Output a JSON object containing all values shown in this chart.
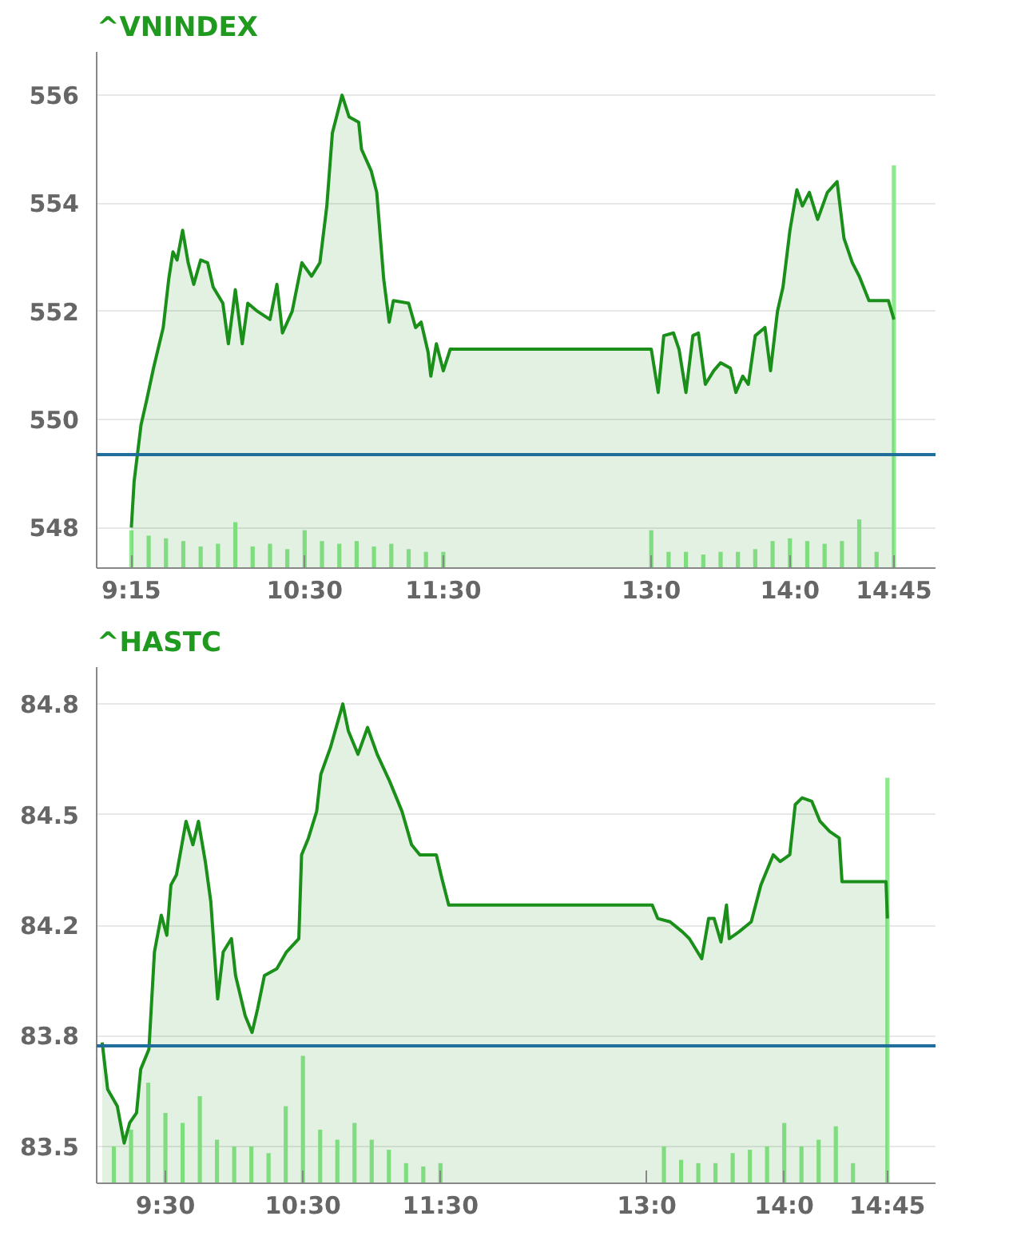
{
  "chart_data": [
    {
      "type": "area",
      "title": "^VNINDEX",
      "xlim": [
        9.0,
        15.05
      ],
      "ylim": [
        547.25,
        556.8
      ],
      "xticks": [
        {
          "value": 9.25,
          "label": "9:15"
        },
        {
          "value": 10.5,
          "label": "10:30"
        },
        {
          "value": 11.5,
          "label": "11:30"
        },
        {
          "value": 13.0,
          "label": "13:0"
        },
        {
          "value": 14.0,
          "label": "14:0"
        },
        {
          "value": 14.75,
          "label": "14:45"
        }
      ],
      "yticks": [
        548,
        550,
        552,
        554,
        556
      ],
      "grid": "y",
      "ref_lines": [
        {
          "axis": "y",
          "value": 549.35,
          "color": "#1f6e9c"
        }
      ],
      "series": [
        {
          "color": "#1a8f1a",
          "x": [
            9.25,
            9.27,
            9.32,
            9.36,
            9.41,
            9.48,
            9.52,
            9.55,
            9.58,
            9.62,
            9.66,
            9.7,
            9.75,
            9.8,
            9.84,
            9.91,
            9.95,
            10.0,
            10.05,
            10.09,
            10.16,
            10.25,
            10.3,
            10.34,
            10.41,
            10.48,
            10.55,
            10.61,
            10.66,
            10.7,
            10.77,
            10.82,
            10.89,
            10.91,
            10.98,
            11.02,
            11.07,
            11.11,
            11.14,
            11.25,
            11.3,
            11.34,
            11.39,
            11.41,
            11.45,
            11.5,
            11.55,
            13.0,
            13.05,
            13.09,
            13.16,
            13.2,
            13.25,
            13.3,
            13.34,
            13.39,
            13.45,
            13.5,
            13.57,
            13.61,
            13.66,
            13.7,
            13.75,
            13.82,
            13.86,
            13.91,
            13.95,
            14.0,
            14.05,
            14.09,
            14.14,
            14.2,
            14.27,
            14.34,
            14.39,
            14.45,
            14.5,
            14.57,
            14.71,
            14.75
          ],
          "values": [
            548.0,
            548.85,
            549.9,
            550.35,
            550.95,
            551.7,
            552.6,
            553.1,
            552.95,
            553.5,
            552.9,
            552.5,
            552.95,
            552.9,
            552.45,
            552.15,
            551.4,
            552.4,
            551.4,
            552.15,
            552.0,
            551.85,
            552.5,
            551.6,
            552.0,
            552.9,
            552.65,
            552.9,
            553.95,
            555.3,
            556.0,
            555.6,
            555.5,
            555.0,
            554.6,
            554.2,
            552.6,
            551.8,
            552.2,
            552.15,
            551.7,
            551.8,
            551.25,
            550.8,
            551.4,
            550.9,
            551.3,
            551.3,
            550.5,
            551.55,
            551.6,
            551.3,
            550.5,
            551.55,
            551.6,
            550.65,
            550.9,
            551.05,
            550.95,
            550.5,
            550.8,
            550.65,
            551.55,
            551.7,
            550.9,
            552.0,
            552.45,
            553.5,
            554.25,
            553.95,
            554.2,
            553.7,
            554.2,
            554.4,
            553.35,
            552.9,
            552.65,
            552.2,
            552.2,
            551.85
          ]
        },
        {
          "type": "bar",
          "color": "#8ee88e",
          "x": [
            9.25,
            9.375,
            9.5,
            9.625,
            9.75,
            9.875,
            10.0,
            10.125,
            10.25,
            10.375,
            10.5,
            10.625,
            10.75,
            10.875,
            11.0,
            11.125,
            11.25,
            11.375,
            11.5,
            13.0,
            13.125,
            13.25,
            13.375,
            13.5,
            13.625,
            13.75,
            13.875,
            14.0,
            14.125,
            14.25,
            14.375,
            14.5,
            14.625,
            14.75
          ],
          "base": [
            547.25,
            547.25,
            547.25,
            547.25,
            547.25,
            547.25,
            547.25,
            547.25,
            547.25,
            547.25,
            547.25,
            547.25,
            547.25,
            547.25,
            547.25,
            547.25,
            547.25,
            547.25,
            547.25,
            547.25,
            547.25,
            547.25,
            547.25,
            547.25,
            547.25,
            547.25,
            547.25,
            547.25,
            547.25,
            547.25,
            547.25,
            547.25,
            547.25,
            547.25
          ],
          "values": [
            0.7,
            0.6,
            0.55,
            0.5,
            0.4,
            0.45,
            0.85,
            0.4,
            0.45,
            0.35,
            0.7,
            0.5,
            0.45,
            0.5,
            0.4,
            0.45,
            0.35,
            0.3,
            0.3,
            0.7,
            0.3,
            0.3,
            0.25,
            0.3,
            0.3,
            0.35,
            0.5,
            0.55,
            0.5,
            0.45,
            0.5,
            0.9,
            0.3,
            7.45
          ]
        }
      ]
    },
    {
      "type": "area",
      "title": "^HASTC",
      "xlim": [
        9.0,
        15.1
      ],
      "ylim": [
        83.39,
        84.93
      ],
      "xticks": [
        {
          "value": 9.5,
          "label": "9:30"
        },
        {
          "value": 10.5,
          "label": "10:30"
        },
        {
          "value": 11.5,
          "label": "11:30"
        },
        {
          "value": 13.0,
          "label": "13:0"
        },
        {
          "value": 14.0,
          "label": "14:0"
        },
        {
          "value": 14.75,
          "label": "14:45"
        }
      ],
      "yticks": [
        {
          "value": 83.5,
          "label": "83.5"
        },
        {
          "value": 83.83,
          "label": "83.8"
        },
        {
          "value": 84.16,
          "label": "84.2"
        },
        {
          "value": 84.49,
          "label": "84.5"
        },
        {
          "value": 84.82,
          "label": "84.8"
        }
      ],
      "grid": "y",
      "ref_lines": [
        {
          "axis": "y",
          "value": 83.8,
          "color": "#1f6e9c"
        }
      ],
      "series": [
        {
          "color": "#1a8f1a",
          "x": [
            9.04,
            9.08,
            9.15,
            9.2,
            9.24,
            9.29,
            9.32,
            9.38,
            9.42,
            9.47,
            9.51,
            9.54,
            9.58,
            9.65,
            9.7,
            9.74,
            9.79,
            9.83,
            9.88,
            9.92,
            9.98,
            10.01,
            10.08,
            10.13,
            10.17,
            10.22,
            10.31,
            10.38,
            10.47,
            10.49,
            10.54,
            10.6,
            10.63,
            10.7,
            10.79,
            10.83,
            10.9,
            10.97,
            11.04,
            11.13,
            11.22,
            11.29,
            11.35,
            11.47,
            11.51,
            11.56,
            13.04,
            13.08,
            13.17,
            13.26,
            13.31,
            13.4,
            13.45,
            13.49,
            13.54,
            13.58,
            13.6,
            13.67,
            13.76,
            13.83,
            13.92,
            13.97,
            14.04,
            14.08,
            14.13,
            14.2,
            14.26,
            14.33,
            14.4,
            14.42,
            14.51,
            14.74,
            14.75
          ],
          "values": [
            83.81,
            83.67,
            83.62,
            83.51,
            83.57,
            83.6,
            83.73,
            83.79,
            84.08,
            84.19,
            84.13,
            84.28,
            84.31,
            84.47,
            84.4,
            84.47,
            84.35,
            84.23,
            83.94,
            84.08,
            84.12,
            84.01,
            83.89,
            83.84,
            83.91,
            84.01,
            84.03,
            84.08,
            84.12,
            84.37,
            84.42,
            84.5,
            84.61,
            84.69,
            84.82,
            84.74,
            84.67,
            84.75,
            84.67,
            84.59,
            84.5,
            84.4,
            84.37,
            84.37,
            84.3,
            84.22,
            84.22,
            84.18,
            84.17,
            84.14,
            84.12,
            84.06,
            84.18,
            84.18,
            84.11,
            84.22,
            84.12,
            84.14,
            84.17,
            84.28,
            84.37,
            84.35,
            84.37,
            84.52,
            84.54,
            84.53,
            84.47,
            84.44,
            84.42,
            84.29,
            84.29,
            84.29,
            84.18
          ]
        },
        {
          "type": "bar",
          "color": "#8ee88e",
          "x": [
            9.125,
            9.25,
            9.375,
            9.5,
            9.625,
            9.75,
            9.875,
            10.0,
            10.125,
            10.25,
            10.375,
            10.5,
            10.625,
            10.75,
            10.875,
            11.0,
            11.125,
            11.25,
            11.375,
            11.5,
            13.125,
            13.25,
            13.375,
            13.5,
            13.625,
            13.75,
            13.875,
            14.0,
            14.125,
            14.25,
            14.375,
            14.5,
            14.75
          ],
          "base": [
            83.39,
            83.39,
            83.39,
            83.39,
            83.39,
            83.39,
            83.39,
            83.39,
            83.39,
            83.39,
            83.39,
            83.39,
            83.39,
            83.39,
            83.39,
            83.39,
            83.39,
            83.39,
            83.39,
            83.39,
            83.39,
            83.39,
            83.39,
            83.39,
            83.39,
            83.39,
            83.39,
            83.39,
            83.39,
            83.39,
            83.39,
            83.39,
            83.39
          ],
          "values": [
            0.11,
            0.16,
            0.3,
            0.21,
            0.18,
            0.26,
            0.13,
            0.11,
            0.11,
            0.09,
            0.23,
            0.38,
            0.16,
            0.13,
            0.18,
            0.13,
            0.1,
            0.06,
            0.05,
            0.06,
            0.11,
            0.07,
            0.06,
            0.06,
            0.09,
            0.1,
            0.11,
            0.18,
            0.11,
            0.13,
            0.17,
            0.06,
            1.21
          ]
        }
      ]
    }
  ]
}
